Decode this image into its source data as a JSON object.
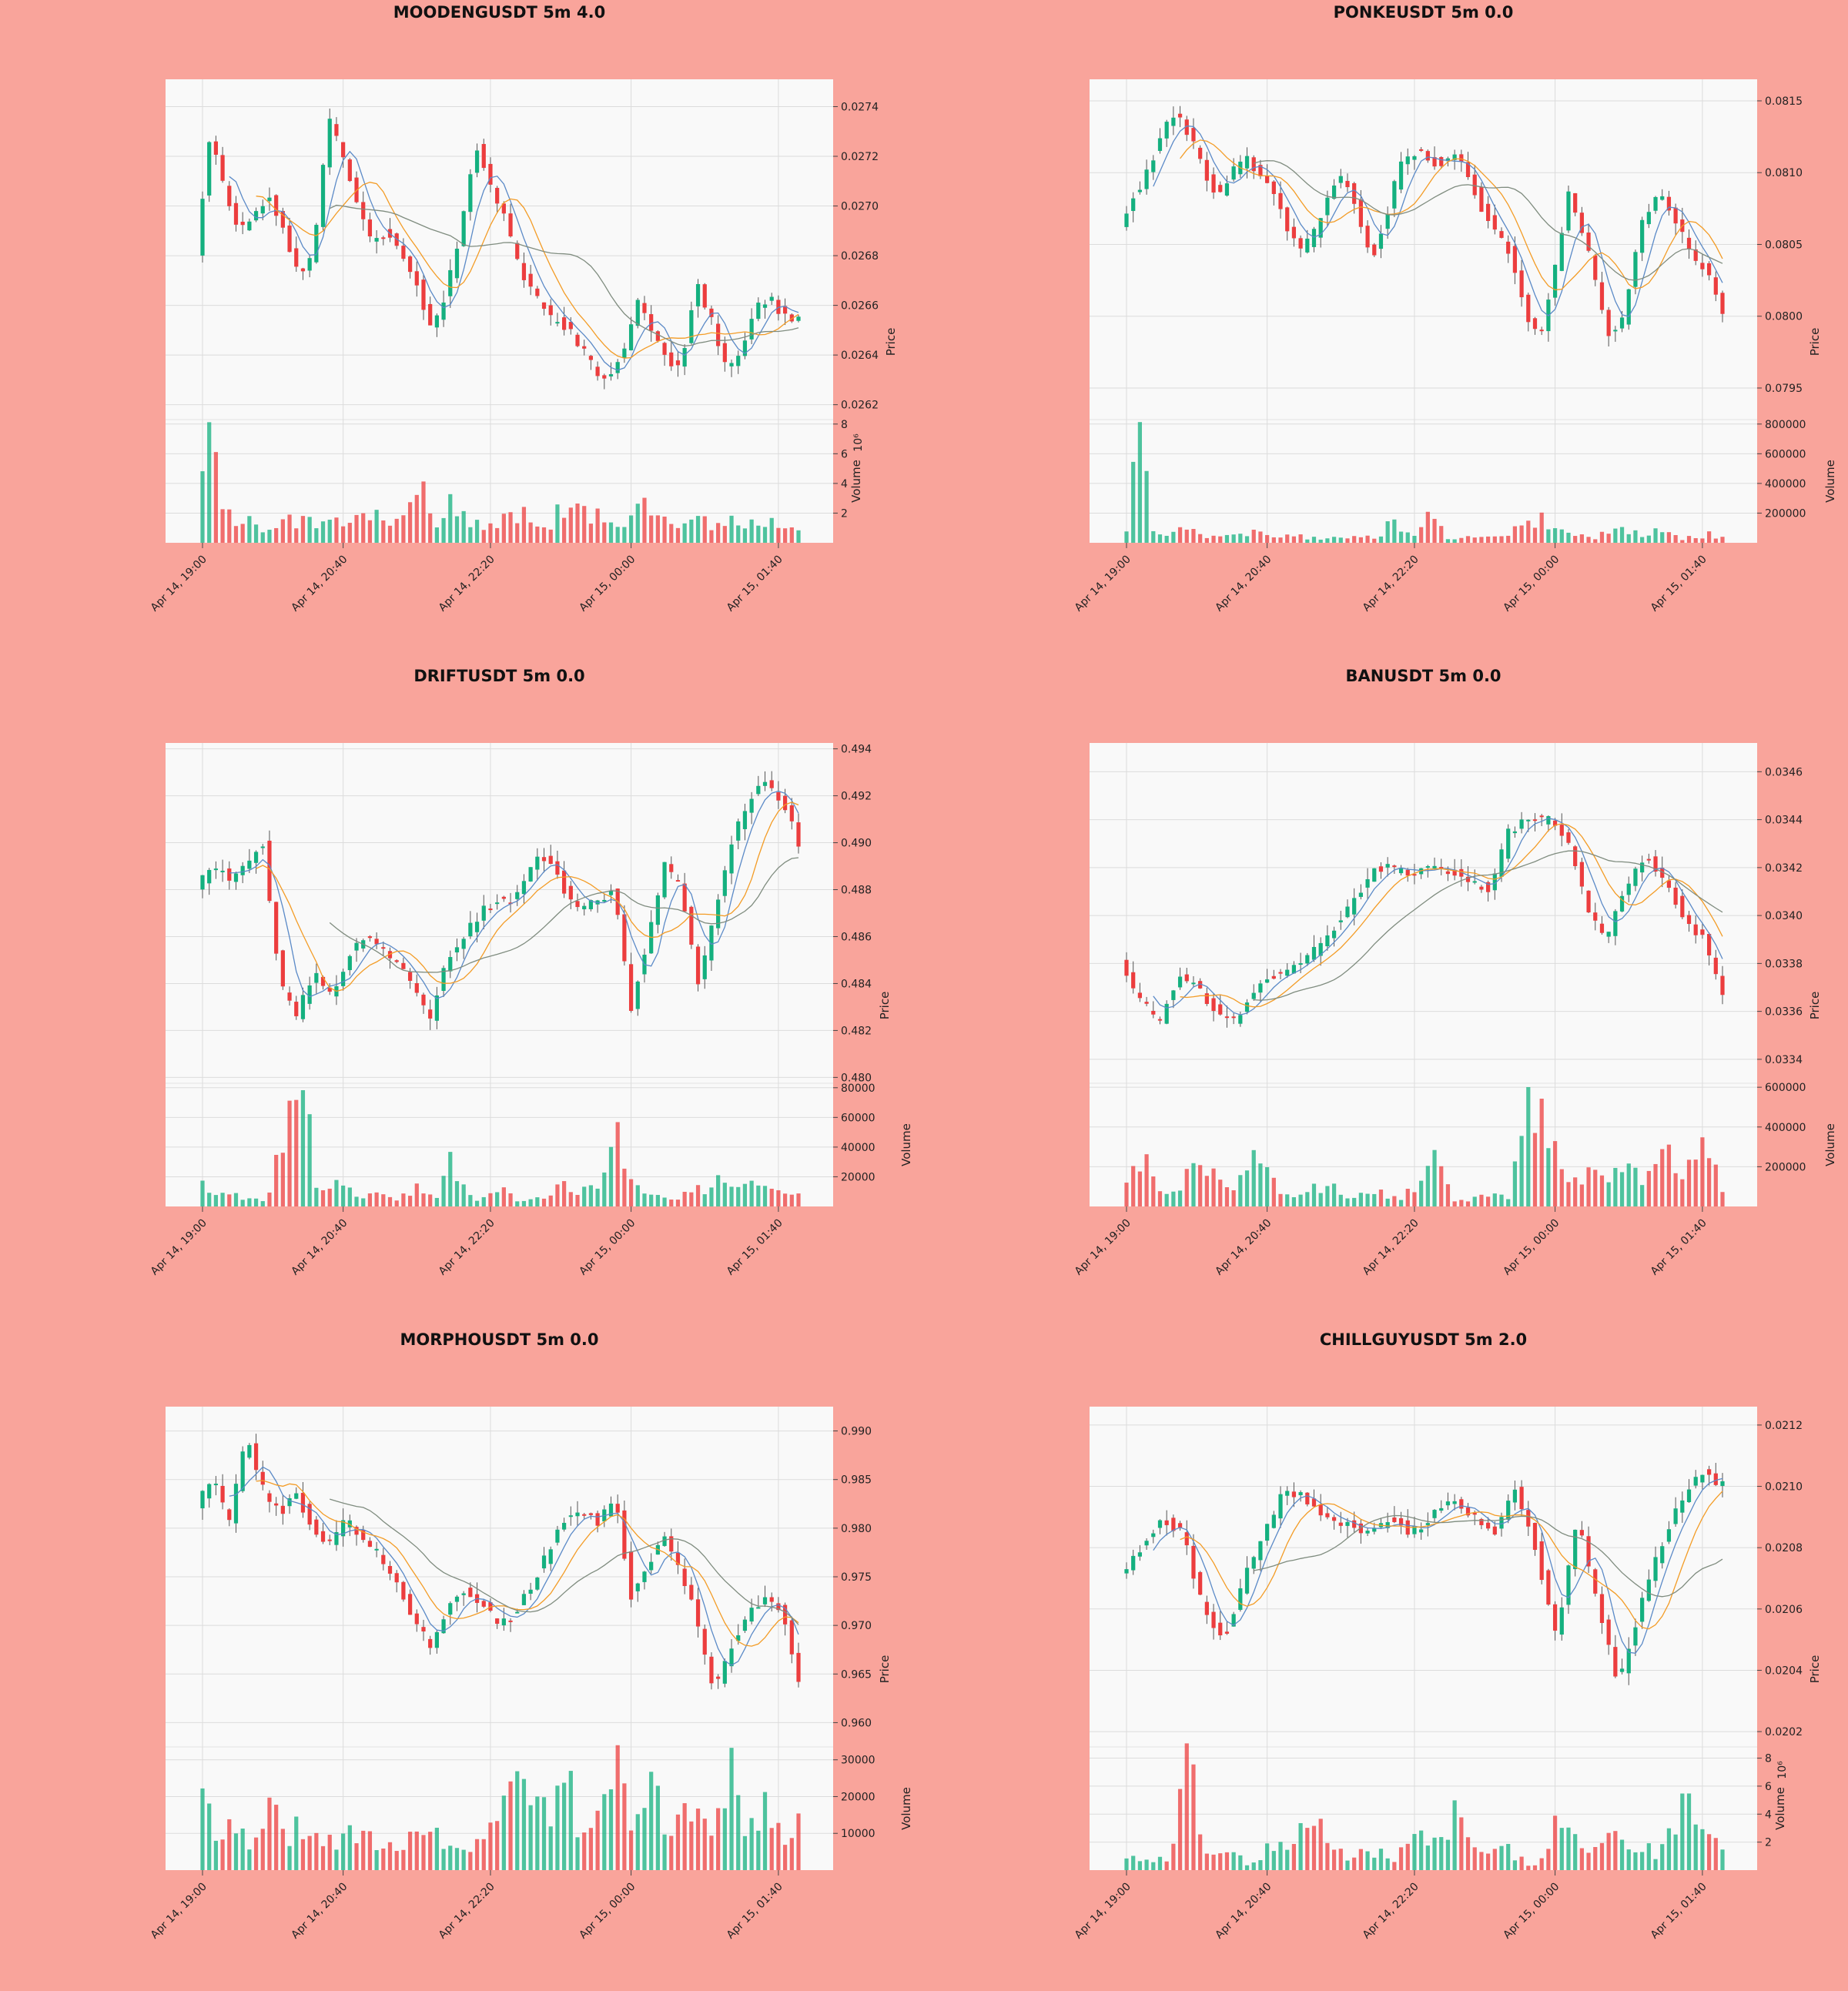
{
  "figure": {
    "background": "#f9a49b",
    "panel_background": "#f9f9f9",
    "grid_color": "#dcdcdc"
  },
  "colors": {
    "up": "#14b07f",
    "down": "#ec3d3e",
    "ma_short": "#5b8ac7",
    "ma_mid": "#f39c26",
    "ma_long": "#7f8c7f"
  },
  "chart_data": [
    {
      "type": "candlestick",
      "title": "MOODENGUSDT 5m 4.0",
      "price_label": "Price",
      "volume_label": "Volume",
      "volume_multiplier": "10⁶",
      "price_ticks": [
        "0.0262",
        "0.0264",
        "0.0266",
        "0.0268",
        "0.0270",
        "0.0272",
        "0.0274"
      ],
      "volume_ticks": [
        "2",
        "4",
        "6",
        "8"
      ],
      "x_ticks": [
        "Apr 14, 19:00",
        "Apr 14, 20:40",
        "Apr 14, 22:20",
        "Apr 15, 00:00",
        "Apr 15, 01:40"
      ],
      "price_range": [
        0.02614,
        0.02751
      ],
      "volume_range": [
        0,
        8.3
      ],
      "price_path": [
        0.0268,
        0.0273,
        0.02705,
        0.0269,
        0.02695,
        0.02705,
        0.0269,
        0.02672,
        0.0268,
        0.02735,
        0.0272,
        0.027,
        0.02685,
        0.0269,
        0.0268,
        0.0267,
        0.0265,
        0.02665,
        0.0269,
        0.02725,
        0.0271,
        0.02695,
        0.02675,
        0.02665,
        0.02655,
        0.02652,
        0.02645,
        0.02635,
        0.0263,
        0.0264,
        0.02662,
        0.0265,
        0.02638,
        0.02635,
        0.0267,
        0.02655,
        0.02635,
        0.0264,
        0.0266,
        0.02663,
        0.02656,
        0.02654
      ],
      "volume_path": [
        8.0,
        5.1,
        2.2,
        1.6,
        1.2,
        1.7,
        2.0,
        1.4,
        1.3,
        2.8,
        1.5,
        1.7,
        1.8,
        1.4,
        1.8,
        4.4,
        1.0,
        2.5,
        2.0,
        1.4,
        1.2,
        1.8,
        1.9,
        1.3,
        1.6,
        2.7,
        2.0,
        1.9,
        1.4,
        1.2,
        4.8,
        2.8,
        1.4,
        1.3,
        1.6,
        1.2,
        1.8,
        1.4,
        1.5,
        1.6,
        1.3,
        1.5
      ],
      "seed": 11
    },
    {
      "type": "candlestick",
      "title": "PONKEUSDT 5m 0.0",
      "price_label": "Price",
      "volume_label": "Volume",
      "volume_multiplier": "",
      "price_ticks": [
        "0.0795",
        "0.0800",
        "0.0805",
        "0.0810",
        "0.0815"
      ],
      "volume_ticks": [
        "200000",
        "400000",
        "600000",
        "800000"
      ],
      "x_ticks": [
        "Apr 14, 19:00",
        "Apr 14, 20:40",
        "Apr 14, 22:20",
        "Apr 15, 00:00",
        "Apr 15, 01:40"
      ],
      "price_range": [
        0.07928,
        0.08165
      ],
      "volume_range": [
        0,
        830000
      ],
      "price_path": [
        0.08065,
        0.08085,
        0.081,
        0.0813,
        0.0814,
        0.08125,
        0.081,
        0.08085,
        0.081,
        0.0811,
        0.081,
        0.08085,
        0.0806,
        0.08045,
        0.0806,
        0.0809,
        0.081,
        0.0807,
        0.0804,
        0.0807,
        0.08105,
        0.08115,
        0.0811,
        0.08105,
        0.08115,
        0.08095,
        0.0807,
        0.0806,
        0.0804,
        0.08,
        0.07985,
        0.0803,
        0.08085,
        0.0806,
        0.0802,
        0.07985,
        0.08,
        0.0806,
        0.0808,
        0.0808,
        0.0806,
        0.0804,
        0.0803,
        0.08
      ],
      "volume_path": [
        90000,
        810000,
        50000,
        60000,
        90000,
        70000,
        50000,
        80000,
        60000,
        70000,
        60000,
        40000,
        50000,
        40000,
        30000,
        50000,
        30000,
        40000,
        30000,
        150000,
        60000,
        40000,
        200000,
        40000,
        30000,
        50000,
        40000,
        30000,
        90000,
        150000,
        160000,
        80000,
        60000,
        40000,
        30000,
        130000,
        110000,
        50000,
        70000,
        90000,
        30000,
        40000,
        60000,
        30000
      ],
      "seed": 23
    },
    {
      "type": "candlestick",
      "title": "DRIFTUSDT 5m 0.0",
      "price_label": "Price",
      "volume_label": "Volume",
      "volume_multiplier": "",
      "price_ticks": [
        "0.480",
        "0.482",
        "0.484",
        "0.486",
        "0.488",
        "0.490",
        "0.492",
        "0.494"
      ],
      "volume_ticks": [
        "20000",
        "40000",
        "60000",
        "80000"
      ],
      "x_ticks": [
        "Apr 14, 19:00",
        "Apr 14, 20:40",
        "Apr 14, 22:20",
        "Apr 15, 00:00",
        "Apr 15, 01:40"
      ],
      "price_range": [
        0.47975,
        0.49425
      ],
      "volume_range": [
        0,
        83000
      ],
      "price_path": [
        0.488,
        0.489,
        0.4885,
        0.489,
        0.49,
        0.484,
        0.4825,
        0.4845,
        0.4835,
        0.485,
        0.486,
        0.4855,
        0.485,
        0.484,
        0.4825,
        0.485,
        0.486,
        0.487,
        0.4875,
        0.4875,
        0.489,
        0.4895,
        0.488,
        0.4872,
        0.4875,
        0.488,
        0.483,
        0.486,
        0.489,
        0.488,
        0.484,
        0.487,
        0.49,
        0.4918,
        0.4925,
        0.4918,
        0.49
      ],
      "volume_path": [
        13000,
        8000,
        7000,
        6000,
        5000,
        66000,
        82000,
        12000,
        18000,
        9000,
        7000,
        10000,
        6000,
        12000,
        5000,
        32000,
        6000,
        5000,
        14000,
        6000,
        5000,
        8000,
        15000,
        12000,
        9000,
        51000,
        13000,
        14000,
        9000,
        7000,
        12000,
        18000,
        12000,
        14000,
        14000,
        10000,
        7000
      ],
      "seed": 37
    },
    {
      "type": "candlestick",
      "title": "BANUSDT 5m 0.0",
      "price_label": "Price",
      "volume_label": "Volume",
      "volume_multiplier": "",
      "price_ticks": [
        "0.0334",
        "0.0336",
        "0.0338",
        "0.0340",
        "0.0342",
        "0.0344",
        "0.0346"
      ],
      "volume_ticks": [
        "200000",
        "400000",
        "600000"
      ],
      "x_ticks": [
        "Apr 14, 19:00",
        "Apr 14, 20:40",
        "Apr 14, 22:20",
        "Apr 15, 00:00",
        "Apr 15, 01:40"
      ],
      "price_range": [
        0.0333,
        0.03472
      ],
      "volume_range": [
        0,
        620000
      ],
      "price_path": [
        0.0338,
        0.03365,
        0.03355,
        0.03375,
        0.0337,
        0.0336,
        0.03355,
        0.0337,
        0.03375,
        0.03378,
        0.03385,
        0.03395,
        0.03405,
        0.0342,
        0.0342,
        0.03418,
        0.0342,
        0.03418,
        0.03415,
        0.0341,
        0.03435,
        0.0344,
        0.0344,
        0.03432,
        0.03405,
        0.0339,
        0.0341,
        0.03425,
        0.03415,
        0.034,
        0.0339,
        0.03365
      ],
      "volume_path": [
        180000,
        240000,
        70000,
        150000,
        260000,
        100000,
        130000,
        260000,
        50000,
        40000,
        120000,
        90000,
        40000,
        100000,
        40000,
        90000,
        240000,
        30000,
        40000,
        70000,
        60000,
        600000,
        320000,
        130000,
        160000,
        120000,
        210000,
        110000,
        350000,
        90000,
        480000,
        80000
      ],
      "seed": 41
    },
    {
      "type": "candlestick",
      "title": "MORPHOUSDT 5m 0.0",
      "price_label": "Price",
      "volume_label": "Volume",
      "volume_multiplier": "",
      "price_ticks": [
        "0.960",
        "0.965",
        "0.970",
        "0.975",
        "0.980",
        "0.985",
        "0.990"
      ],
      "volume_ticks": [
        "10000",
        "20000",
        "30000"
      ],
      "x_ticks": [
        "Apr 14, 19:00",
        "Apr 14, 20:40",
        "Apr 14, 22:20",
        "Apr 15, 00:00",
        "Apr 15, 01:40"
      ],
      "price_range": [
        0.9575,
        0.9925
      ],
      "volume_range": [
        0,
        33500
      ],
      "price_path": [
        0.9825,
        0.985,
        0.9805,
        0.9895,
        0.984,
        0.9815,
        0.9835,
        0.98,
        0.9785,
        0.981,
        0.979,
        0.977,
        0.9745,
        0.9705,
        0.968,
        0.9715,
        0.9735,
        0.9725,
        0.97,
        0.9712,
        0.974,
        0.9775,
        0.981,
        0.982,
        0.9805,
        0.9835,
        0.973,
        0.9765,
        0.979,
        0.9755,
        0.97,
        0.963,
        0.968,
        0.9715,
        0.9725,
        0.9715,
        0.9645
      ],
      "volume_path": [
        23000,
        8000,
        12000,
        9000,
        15000,
        11000,
        13000,
        8000,
        9000,
        11000,
        10000,
        6000,
        8000,
        11000,
        10000,
        5000,
        7000,
        10000,
        26000,
        22000,
        25000,
        12000,
        27000,
        10000,
        14000,
        28000,
        8000,
        31000,
        12000,
        17000,
        15000,
        14000,
        33000,
        10000,
        24000,
        11000,
        15000
      ],
      "seed": 53
    },
    {
      "type": "candlestick",
      "title": "CHILLGUYUSDT 5m 2.0",
      "price_label": "Price",
      "volume_label": "Volume",
      "volume_multiplier": "10⁶",
      "price_ticks": [
        "0.0202",
        "0.0204",
        "0.0206",
        "0.0208",
        "0.0210",
        "0.0212"
      ],
      "volume_ticks": [
        "2",
        "4",
        "6",
        "8"
      ],
      "x_ticks": [
        "Apr 14, 19:00",
        "Apr 14, 20:40",
        "Apr 14, 22:20",
        "Apr 15, 00:00",
        "Apr 15, 01:40"
      ],
      "price_range": [
        0.02015,
        0.02126
      ],
      "volume_range": [
        0,
        8.8
      ],
      "price_path": [
        0.0207,
        0.0208,
        0.0209,
        0.02085,
        0.0206,
        0.0205,
        0.0207,
        0.02085,
        0.021,
        0.02095,
        0.0209,
        0.02088,
        0.02085,
        0.0209,
        0.02085,
        0.0209,
        0.02095,
        0.0209,
        0.02085,
        0.021,
        0.0208,
        0.0205,
        0.0209,
        0.0206,
        0.02035,
        0.0206,
        0.0208,
        0.02095,
        0.02105,
        0.021
      ],
      "volume_path": [
        1.0,
        1.2,
        0.6,
        8.5,
        0.9,
        1.4,
        0.5,
        1.6,
        2.0,
        4.2,
        1.3,
        1.0,
        1.5,
        0.9,
        2.6,
        1.8,
        3.8,
        1.1,
        2.2,
        0.9,
        0.2,
        3.4,
        1.7,
        2.8,
        2.2,
        2.0,
        1.2,
        4.6,
        3.2,
        1.5
      ],
      "seed": 67
    }
  ]
}
